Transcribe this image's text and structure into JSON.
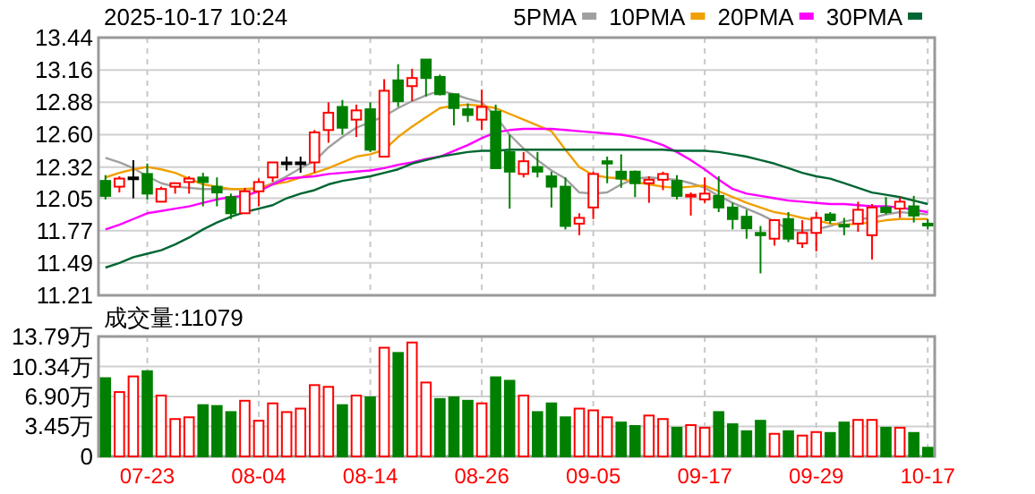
{
  "chart_data": [
    {
      "type": "candlestick",
      "title": "2025-10-17 10:24",
      "categories": [
        null,
        null,
        null,
        null,
        null,
        null,
        null,
        null,
        null,
        null,
        null,
        null,
        null,
        null,
        null,
        null,
        null,
        null,
        null,
        null,
        null,
        null,
        null,
        null,
        null,
        null,
        null,
        null,
        null,
        null,
        null,
        null,
        null,
        null,
        null,
        null,
        null,
        null,
        null,
        null,
        null,
        null,
        null,
        null,
        null,
        null,
        null,
        null,
        null,
        null,
        null,
        null,
        null,
        null,
        null,
        null,
        null,
        null,
        null,
        null
      ],
      "ohlc": [
        [
          12.2,
          12.25,
          12.04,
          12.07
        ],
        [
          12.15,
          12.24,
          12.1,
          12.22
        ],
        [
          12.23,
          12.38,
          12.05,
          12.23
        ],
        [
          12.26,
          12.35,
          12.04,
          12.09
        ],
        [
          12.02,
          12.15,
          12.02,
          12.13
        ],
        [
          12.15,
          12.18,
          12.09,
          12.18
        ],
        [
          12.19,
          12.24,
          12.09,
          12.22
        ],
        [
          12.23,
          12.27,
          11.98,
          12.19
        ],
        [
          12.15,
          12.23,
          11.98,
          12.1
        ],
        [
          12.06,
          12.09,
          11.87,
          11.92
        ],
        [
          11.92,
          12.14,
          11.92,
          12.11
        ],
        [
          12.11,
          12.22,
          11.98,
          12.19
        ],
        [
          12.23,
          12.36,
          12.19,
          12.36
        ],
        [
          12.36,
          12.41,
          12.29,
          12.36
        ],
        [
          12.36,
          12.41,
          12.27,
          12.36
        ],
        [
          12.36,
          12.64,
          12.27,
          12.62
        ],
        [
          12.64,
          12.88,
          12.53,
          12.79
        ],
        [
          12.84,
          12.9,
          12.6,
          12.66
        ],
        [
          12.73,
          12.86,
          12.58,
          12.81
        ],
        [
          12.82,
          12.88,
          12.45,
          12.47
        ],
        [
          12.41,
          13.08,
          12.41,
          12.98
        ],
        [
          13.07,
          13.21,
          12.84,
          12.89
        ],
        [
          13.02,
          13.17,
          12.89,
          13.09
        ],
        [
          13.25,
          13.25,
          12.93,
          13.09
        ],
        [
          13.1,
          13.12,
          12.94,
          12.95
        ],
        [
          12.95,
          12.95,
          12.68,
          12.83
        ],
        [
          12.82,
          12.87,
          12.71,
          12.77
        ],
        [
          12.73,
          12.99,
          12.64,
          12.84
        ],
        [
          12.8,
          12.86,
          12.31,
          12.31
        ],
        [
          12.45,
          12.6,
          11.96,
          12.28
        ],
        [
          12.26,
          12.45,
          12.23,
          12.37
        ],
        [
          12.32,
          12.45,
          12.23,
          12.28
        ],
        [
          12.24,
          12.28,
          11.97,
          12.15
        ],
        [
          12.15,
          12.23,
          11.78,
          11.81
        ],
        [
          11.83,
          11.92,
          11.73,
          11.88
        ],
        [
          11.97,
          12.28,
          11.87,
          12.26
        ],
        [
          12.37,
          12.41,
          12.18,
          12.35
        ],
        [
          12.28,
          12.43,
          12.14,
          12.22
        ],
        [
          12.28,
          12.29,
          12.06,
          12.18
        ],
        [
          12.18,
          12.24,
          12.01,
          12.21
        ],
        [
          12.21,
          12.28,
          12.12,
          12.26
        ],
        [
          12.2,
          12.25,
          12.04,
          12.07
        ],
        [
          12.07,
          12.1,
          11.9,
          12.08
        ],
        [
          12.04,
          12.23,
          12.01,
          12.09
        ],
        [
          12.07,
          12.24,
          11.93,
          11.97
        ],
        [
          11.97,
          12.01,
          11.78,
          11.87
        ],
        [
          11.89,
          11.95,
          11.7,
          11.79
        ],
        [
          11.75,
          11.81,
          11.4,
          11.73
        ],
        [
          11.7,
          11.87,
          11.64,
          11.86
        ],
        [
          11.87,
          11.93,
          11.67,
          11.7
        ],
        [
          11.66,
          11.86,
          11.62,
          11.75
        ],
        [
          11.75,
          11.93,
          11.59,
          11.88
        ],
        [
          11.91,
          11.93,
          11.83,
          11.86
        ],
        [
          11.82,
          11.88,
          11.73,
          11.81
        ],
        [
          11.83,
          12.02,
          11.76,
          11.95
        ],
        [
          11.73,
          12.0,
          11.52,
          11.97
        ],
        [
          11.97,
          12.06,
          11.91,
          11.93
        ],
        [
          11.96,
          12.06,
          11.88,
          12.02
        ],
        [
          11.98,
          12.07,
          11.84,
          11.9
        ],
        [
          11.83,
          11.87,
          11.78,
          11.82
        ]
      ],
      "colors": [
        "#008000",
        "#ff0000",
        "#000000",
        "#008000",
        "#ff0000",
        "#ff0000",
        "#ff0000",
        "#008000",
        "#008000",
        "#008000",
        "#ff0000",
        "#ff0000",
        "#ff0000",
        "#000000",
        "#000000",
        "#ff0000",
        "#ff0000",
        "#008000",
        "#ff0000",
        "#008000",
        "#ff0000",
        "#008000",
        "#ff0000",
        "#008000",
        "#008000",
        "#008000",
        "#008000",
        "#ff0000",
        "#008000",
        "#008000",
        "#ff0000",
        "#008000",
        "#008000",
        "#008000",
        "#ff0000",
        "#ff0000",
        "#008000",
        "#008000",
        "#008000",
        "#ff0000",
        "#ff0000",
        "#008000",
        "#ff0000",
        "#ff0000",
        "#008000",
        "#008000",
        "#008000",
        "#008000",
        "#ff0000",
        "#008000",
        "#ff0000",
        "#ff0000",
        "#008000",
        "#008000",
        "#ff0000",
        "#ff0000",
        "#008000",
        "#ff0000",
        "#008000",
        "#008000"
      ],
      "series": [
        {
          "type": "line",
          "name": "5PMA",
          "color": "#a0a0a0",
          "values": [
            12.4,
            12.36,
            12.31,
            12.24,
            12.18,
            12.15,
            12.14,
            12.13,
            12.13,
            12.13,
            12.13,
            12.13,
            12.18,
            12.24,
            12.31,
            12.37,
            12.49,
            12.58,
            12.66,
            12.71,
            12.76,
            12.83,
            12.89,
            12.94,
            12.98,
            12.95,
            12.91,
            12.88,
            12.76,
            12.6,
            12.48,
            12.38,
            12.29,
            12.22,
            12.1,
            12.09,
            12.1,
            12.17,
            12.22,
            12.23,
            12.22,
            12.21,
            12.18,
            12.14,
            12.07,
            12.01,
            11.96,
            11.91,
            11.85,
            11.78,
            11.77,
            11.78,
            11.81,
            11.85,
            11.87,
            11.88,
            11.91,
            11.93,
            11.92,
            11.91
          ]
        },
        {
          "type": "line",
          "name": "10PMA",
          "color": "#f0a000",
          "values": [
            12.23,
            12.27,
            12.3,
            12.32,
            12.3,
            12.27,
            12.22,
            12.17,
            12.15,
            12.13,
            12.13,
            12.14,
            12.17,
            12.19,
            12.23,
            12.27,
            12.31,
            12.36,
            12.41,
            12.43,
            12.47,
            12.58,
            12.67,
            12.75,
            12.83,
            12.85,
            12.86,
            12.85,
            12.83,
            12.78,
            12.73,
            12.68,
            12.63,
            12.47,
            12.32,
            12.25,
            12.23,
            12.22,
            12.19,
            12.17,
            12.15,
            12.14,
            12.15,
            12.16,
            12.11,
            12.06,
            12.01,
            11.97,
            11.93,
            11.91,
            11.88,
            11.86,
            11.83,
            11.82,
            11.83,
            11.84,
            11.86,
            11.87,
            11.87,
            11.87
          ]
        },
        {
          "type": "line",
          "name": "20PMA",
          "color": "#ff00ff",
          "values": [
            11.78,
            11.82,
            11.87,
            11.92,
            11.94,
            11.96,
            11.98,
            12.01,
            12.04,
            12.06,
            12.07,
            12.11,
            12.17,
            12.22,
            12.23,
            12.24,
            12.26,
            12.27,
            12.28,
            12.29,
            12.31,
            12.34,
            12.36,
            12.39,
            12.41,
            12.46,
            12.51,
            12.57,
            12.62,
            12.64,
            12.65,
            12.65,
            12.65,
            12.64,
            12.63,
            12.62,
            12.61,
            12.6,
            12.58,
            12.55,
            12.51,
            12.45,
            12.38,
            12.3,
            12.21,
            12.13,
            12.09,
            12.07,
            12.05,
            12.03,
            12.02,
            12.01,
            12.0,
            12.0,
            11.99,
            11.98,
            11.98,
            11.97,
            11.95,
            11.93
          ]
        },
        {
          "type": "line",
          "name": "30PMA",
          "color": "#006633",
          "values": [
            11.45,
            11.49,
            11.54,
            11.57,
            11.6,
            11.65,
            11.71,
            11.78,
            11.84,
            11.89,
            11.93,
            11.96,
            11.99,
            12.05,
            12.09,
            12.12,
            12.17,
            12.2,
            12.22,
            12.24,
            12.27,
            12.3,
            12.35,
            12.38,
            12.41,
            12.43,
            12.45,
            12.46,
            12.46,
            12.47,
            12.47,
            12.47,
            12.47,
            12.47,
            12.47,
            12.47,
            12.47,
            12.47,
            12.47,
            12.47,
            12.47,
            12.46,
            12.46,
            12.46,
            12.45,
            12.43,
            12.41,
            12.38,
            12.35,
            12.31,
            12.27,
            12.24,
            12.22,
            12.18,
            12.14,
            12.1,
            12.08,
            12.06,
            12.03,
            12.0
          ]
        }
      ],
      "ylim": [
        11.21,
        13.44
      ],
      "yticks": [
        11.21,
        11.49,
        11.77,
        12.05,
        12.32,
        {
          "value": 12.6,
          "label": "12.60"
        },
        12.88,
        13.16,
        13.44
      ],
      "grid": true,
      "legend": "top right",
      "tick_labels": "y"
    },
    {
      "type": "bar",
      "title": "成交量:11079",
      "categories": [
        null,
        null,
        null,
        "07-23",
        null,
        null,
        null,
        null,
        null,
        null,
        null,
        "08-04",
        null,
        null,
        null,
        null,
        null,
        null,
        null,
        "08-14",
        null,
        null,
        null,
        null,
        null,
        null,
        null,
        "08-26",
        null,
        null,
        null,
        null,
        null,
        null,
        null,
        "09-05",
        null,
        null,
        null,
        null,
        null,
        null,
        null,
        "09-17",
        null,
        null,
        null,
        null,
        null,
        null,
        null,
        "09-29",
        null,
        null,
        null,
        null,
        null,
        null,
        null,
        "10-17"
      ],
      "values": [
        9.0,
        7.4,
        9.2,
        9.8,
        7.0,
        4.3,
        4.5,
        5.9,
        5.8,
        5.1,
        6.4,
        4.1,
        6.1,
        5.1,
        5.5,
        8.2,
        8.0,
        5.9,
        7.0,
        6.8,
        12.5,
        11.9,
        13.1,
        8.5,
        6.6,
        6.8,
        6.4,
        6.1,
        9.1,
        8.7,
        7.0,
        5.1,
        6.1,
        4.5,
        5.5,
        5.3,
        4.5,
        3.9,
        3.5,
        4.7,
        4.3,
        3.3,
        3.6,
        3.3,
        5.1,
        3.7,
        2.9,
        4.1,
        2.6,
        2.9,
        2.4,
        2.8,
        2.7,
        3.9,
        4.2,
        4.2,
        3.3,
        3.3,
        2.7,
        1.0
      ],
      "colors": [
        "#008000",
        "#ff0000",
        "#ff0000",
        "#008000",
        "#ff0000",
        "#ff0000",
        "#ff0000",
        "#008000",
        "#008000",
        "#008000",
        "#ff0000",
        "#ff0000",
        "#ff0000",
        "#ff0000",
        "#ff0000",
        "#ff0000",
        "#ff0000",
        "#008000",
        "#ff0000",
        "#008000",
        "#ff0000",
        "#008000",
        "#ff0000",
        "#ff0000",
        "#008000",
        "#008000",
        "#008000",
        "#ff0000",
        "#008000",
        "#008000",
        "#ff0000",
        "#008000",
        "#008000",
        "#008000",
        "#ff0000",
        "#ff0000",
        "#ff0000",
        "#008000",
        "#008000",
        "#ff0000",
        "#ff0000",
        "#008000",
        "#ff0000",
        "#ff0000",
        "#008000",
        "#008000",
        "#008000",
        "#008000",
        "#ff0000",
        "#008000",
        "#ff0000",
        "#ff0000",
        "#008000",
        "#008000",
        "#ff0000",
        "#ff0000",
        "#008000",
        "#ff0000",
        "#008000",
        "#008000"
      ],
      "ylim": [
        0,
        13.79
      ],
      "yticks": [
        0,
        {
          "value": 3.45,
          "label": "3.45万"
        },
        {
          "value": 6.9,
          "label": "6.90万"
        },
        {
          "value": 10.34,
          "label": "10.34万"
        },
        {
          "value": 13.79,
          "label": "13.79万"
        }
      ],
      "grid": true
    }
  ]
}
